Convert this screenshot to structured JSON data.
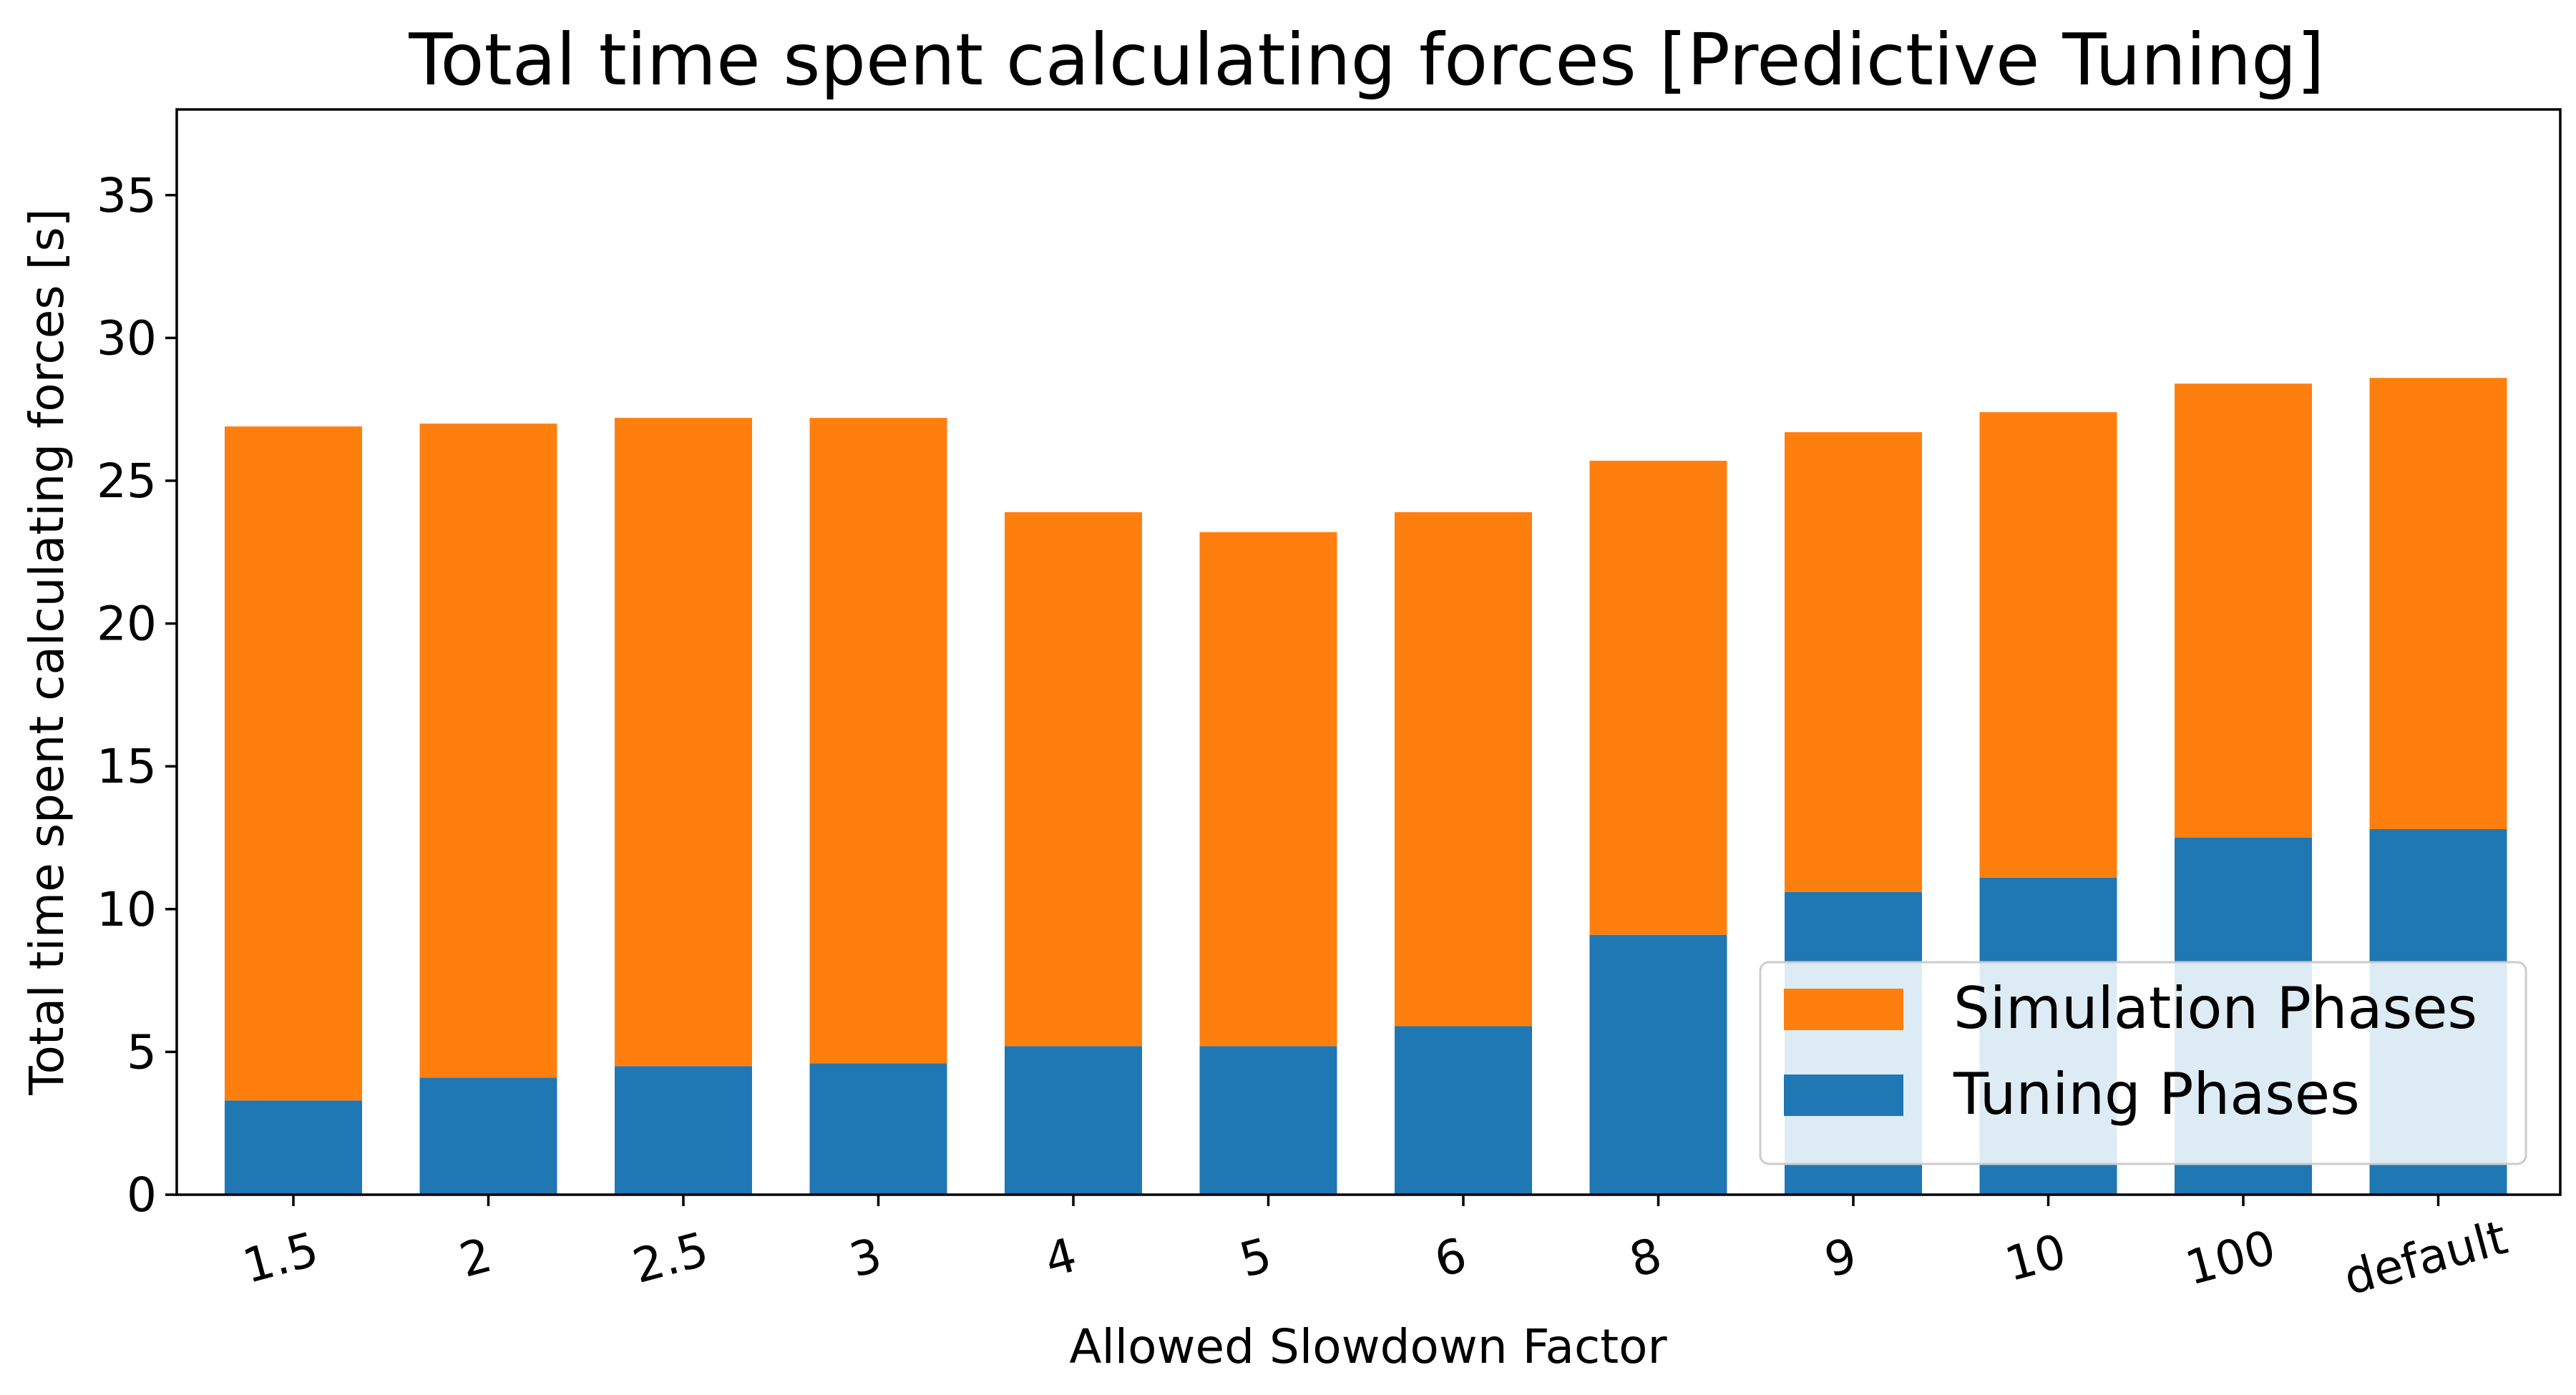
{
  "chart_data": {
    "type": "bar",
    "stacked": true,
    "title": "Total time spent calculating forces [Predictive Tuning]",
    "xlabel": "Allowed Slowdown Factor",
    "ylabel": "Total time spent calculating forces [s]",
    "ylim": [
      0,
      38
    ],
    "yticks": [
      0,
      5,
      10,
      15,
      20,
      25,
      30,
      35
    ],
    "grid": false,
    "legend_position": "lower-right",
    "categories": [
      "1.5",
      "2",
      "2.5",
      "3",
      "4",
      "5",
      "6",
      "8",
      "9",
      "10",
      "100",
      "default"
    ],
    "series": [
      {
        "name": "Tuning Phases",
        "color": "#1f77b4",
        "values": [
          3.3,
          4.1,
          4.5,
          4.6,
          5.2,
          5.2,
          5.9,
          9.1,
          10.6,
          11.1,
          12.5,
          12.8
        ]
      },
      {
        "name": "Simulation Phases",
        "color": "#ff7f0e",
        "values": [
          23.6,
          22.9,
          22.7,
          22.6,
          18.7,
          18.0,
          18.0,
          16.6,
          16.1,
          16.3,
          15.9,
          15.8
        ]
      }
    ],
    "legend_order": [
      "Simulation Phases",
      "Tuning Phases"
    ]
  }
}
